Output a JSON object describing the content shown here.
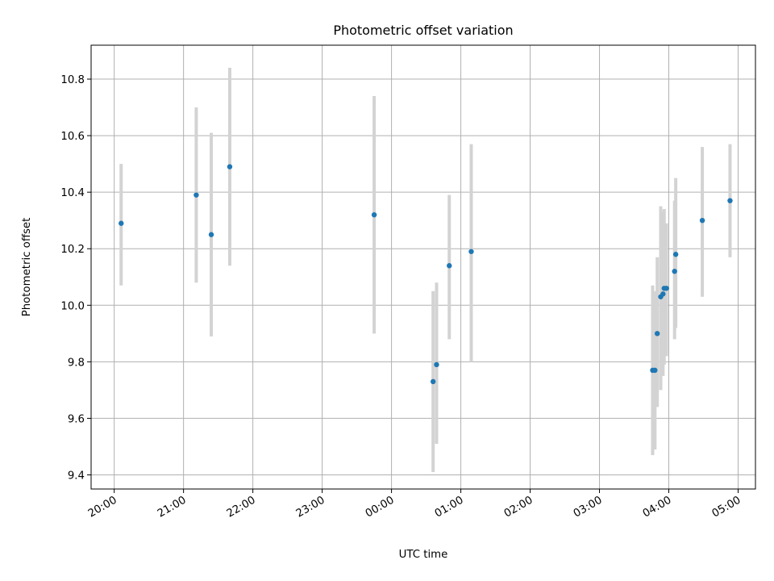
{
  "chart_data": {
    "type": "scatter",
    "title": "Photometric offset variation",
    "xlabel": "UTC time",
    "ylabel": "Photometric offset",
    "xlim": [
      "19:40",
      "05:15"
    ],
    "ylim": [
      9.35,
      10.92
    ],
    "x_ticks": [
      "20:00",
      "21:00",
      "22:00",
      "23:00",
      "00:00",
      "01:00",
      "02:00",
      "03:00",
      "04:00",
      "05:00"
    ],
    "y_ticks": [
      9.4,
      9.6,
      9.8,
      10.0,
      10.2,
      10.4,
      10.6,
      10.8
    ],
    "y_tick_labels": [
      "9.4",
      "9.6",
      "9.8",
      "10.0",
      "10.2",
      "10.4",
      "10.6",
      "10.8"
    ],
    "grid": true,
    "point_color": "#1f77b4",
    "errorbar_color": "#d3d3d3",
    "points": [
      {
        "t": "20:06",
        "y": 10.29,
        "ylo": 10.07,
        "yhi": 10.5
      },
      {
        "t": "21:11",
        "y": 10.39,
        "ylo": 10.08,
        "yhi": 10.7
      },
      {
        "t": "21:24",
        "y": 10.25,
        "ylo": 9.89,
        "yhi": 10.61
      },
      {
        "t": "21:40",
        "y": 10.49,
        "ylo": 10.14,
        "yhi": 10.84
      },
      {
        "t": "23:45",
        "y": 10.32,
        "ylo": 9.9,
        "yhi": 10.74
      },
      {
        "t": "00:36",
        "y": 9.73,
        "ylo": 9.41,
        "yhi": 10.05
      },
      {
        "t": "00:39",
        "y": 9.79,
        "ylo": 9.51,
        "yhi": 10.08
      },
      {
        "t": "00:50",
        "y": 10.14,
        "ylo": 9.88,
        "yhi": 10.39
      },
      {
        "t": "01:09",
        "y": 10.19,
        "ylo": 9.8,
        "yhi": 10.57
      },
      {
        "t": "03:46",
        "y": 9.77,
        "ylo": 9.47,
        "yhi": 10.07
      },
      {
        "t": "03:48",
        "y": 9.77,
        "ylo": 9.49,
        "yhi": 10.05
      },
      {
        "t": "03:50",
        "y": 9.9,
        "ylo": 9.64,
        "yhi": 10.17
      },
      {
        "t": "03:53",
        "y": 10.03,
        "ylo": 9.7,
        "yhi": 10.35
      },
      {
        "t": "03:55",
        "y": 10.04,
        "ylo": 9.75,
        "yhi": 10.33
      },
      {
        "t": "03:56",
        "y": 10.06,
        "ylo": 9.79,
        "yhi": 10.34
      },
      {
        "t": "03:58",
        "y": 10.06,
        "ylo": 9.82,
        "yhi": 10.29
      },
      {
        "t": "04:05",
        "y": 10.12,
        "ylo": 9.88,
        "yhi": 10.37
      },
      {
        "t": "04:06",
        "y": 10.18,
        "ylo": 9.92,
        "yhi": 10.45
      },
      {
        "t": "04:29",
        "y": 10.3,
        "ylo": 10.03,
        "yhi": 10.56
      },
      {
        "t": "04:53",
        "y": 10.37,
        "ylo": 10.17,
        "yhi": 10.57
      }
    ]
  }
}
